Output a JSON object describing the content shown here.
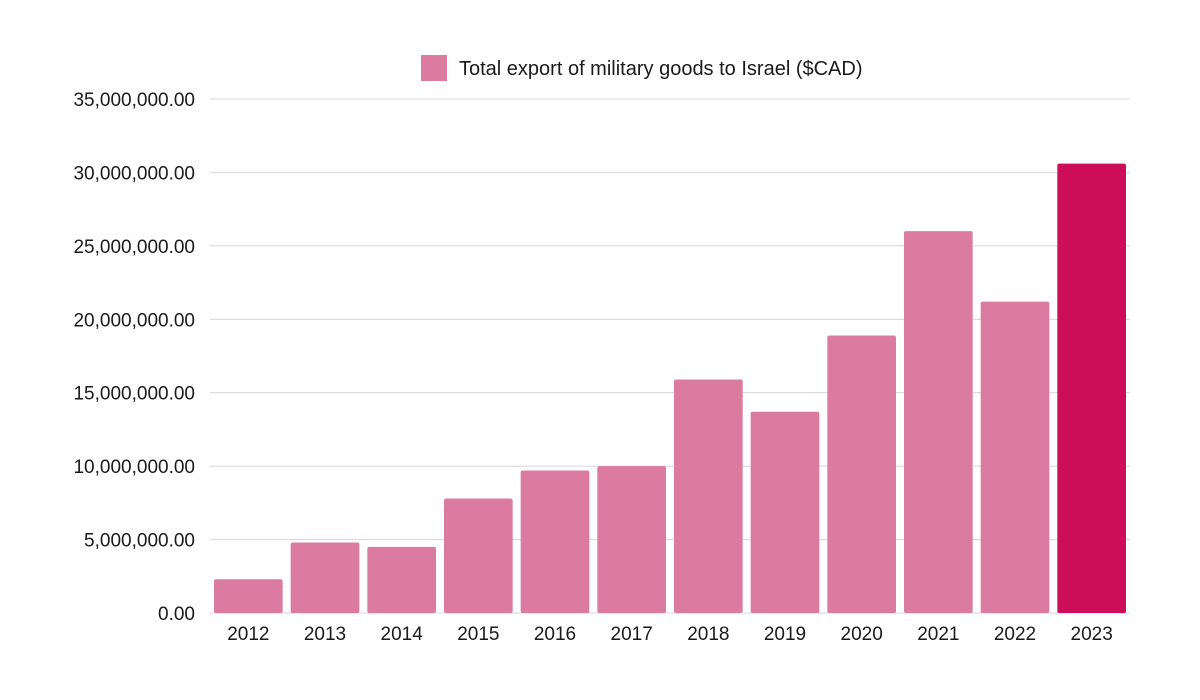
{
  "chart_data": {
    "type": "bar",
    "title": "",
    "xlabel": "",
    "ylabel": "",
    "ylim": [
      0,
      35000000
    ],
    "yticks": [
      0,
      5000000,
      10000000,
      15000000,
      20000000,
      25000000,
      30000000,
      35000000
    ],
    "ytick_labels": [
      "0.00",
      "5,000,000.00",
      "10,000,000.00",
      "15,000,000.00",
      "20,000,000.00",
      "25,000,000.00",
      "30,000,000.00",
      "35,000,000.00"
    ],
    "grid": true,
    "legend_position": "top-center",
    "categories": [
      "2012",
      "2013",
      "2014",
      "2015",
      "2016",
      "2017",
      "2018",
      "2019",
      "2020",
      "2021",
      "2022",
      "2023"
    ],
    "series": [
      {
        "name": "Total export of military goods to Israel ($CAD)",
        "color": "#db7ba0",
        "values": [
          2300000,
          4800000,
          4500000,
          7800000,
          9700000,
          10000000,
          15900000,
          13700000,
          18900000,
          26000000,
          21200000,
          30600000
        ]
      }
    ],
    "highlight_category": "2023",
    "highlight_color": "#cc0e5a",
    "gridline_color": "#d4d4d4"
  }
}
